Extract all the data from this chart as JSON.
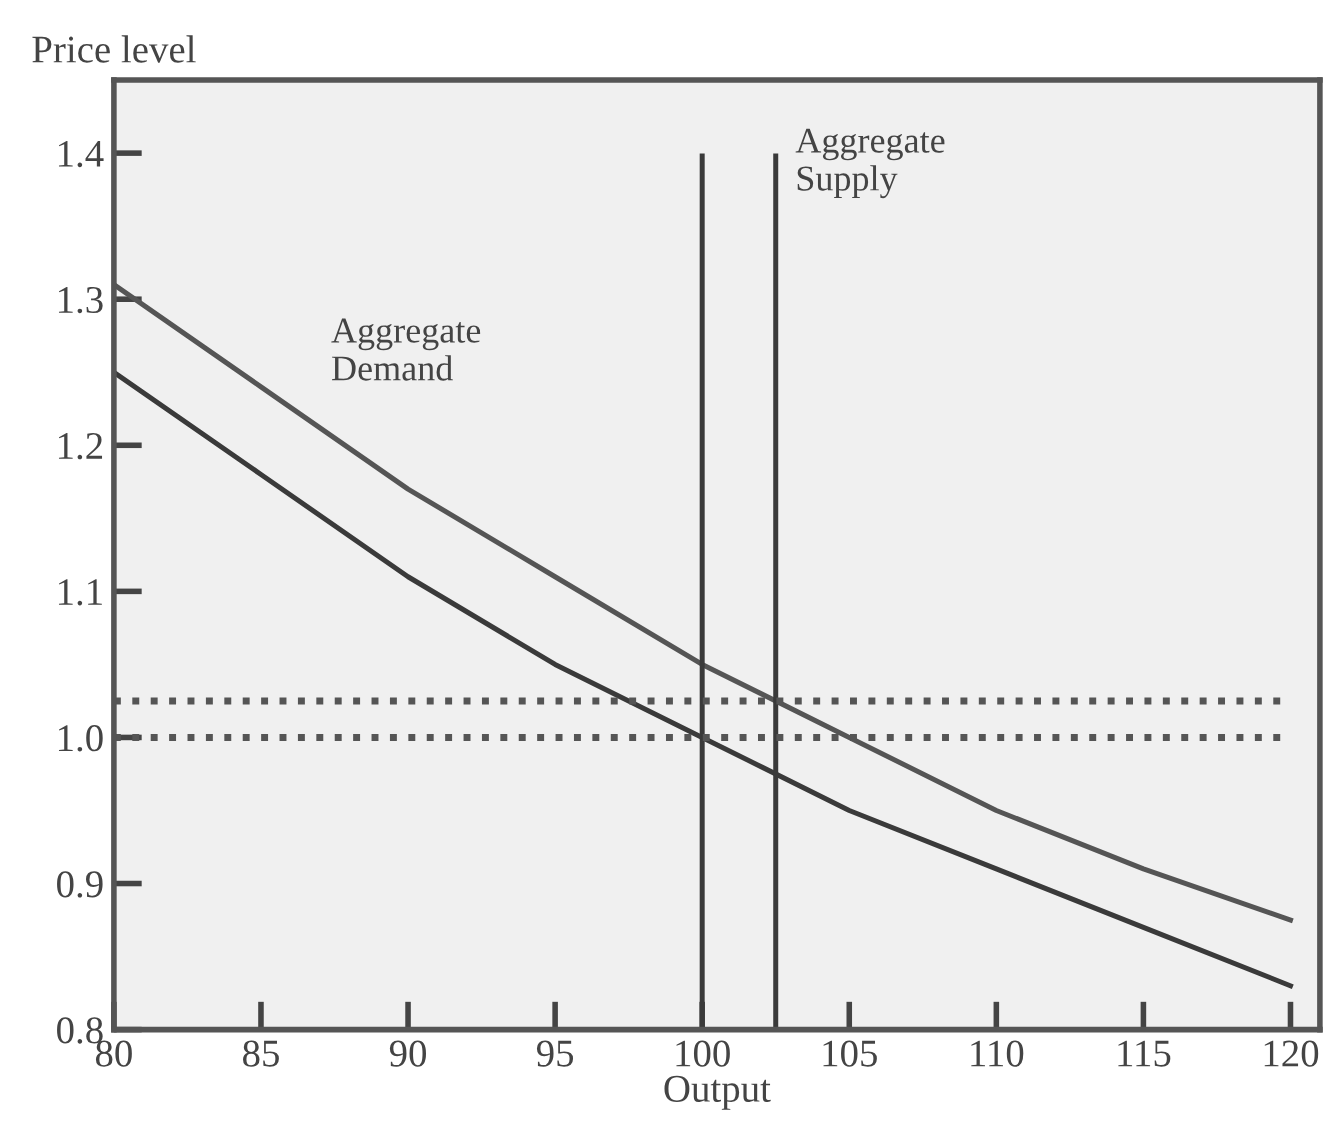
{
  "chart_data": {
    "type": "line",
    "xlabel": "Output",
    "ylabel": "Price level",
    "xlim": [
      80,
      121
    ],
    "ylim": [
      0.8,
      1.45
    ],
    "xticks": [
      80,
      85,
      90,
      95,
      100,
      105,
      110,
      115,
      120
    ],
    "yticks": [
      0.8,
      0.9,
      {
        "value": 1,
        "label": "1.0"
      },
      1.1,
      1.2,
      1.3,
      1.4
    ],
    "grid": false,
    "legend": false,
    "marker": "none",
    "line_style": "solid",
    "x": [
      80,
      85,
      90,
      95,
      100,
      105,
      110,
      115,
      120
    ],
    "series": [
      {
        "color": "#3a3a3a",
        "values": [
          1.25,
          1.18,
          1.11,
          1.05,
          1.0,
          0.95,
          0.91,
          0.87,
          0.83
        ]
      },
      {
        "color": "#555555",
        "values": [
          1.31,
          1.24,
          1.17,
          1.11,
          1.05,
          1.0,
          0.95,
          0.91,
          0.875
        ]
      }
    ],
    "ref_lines": [
      {
        "axis": "x",
        "value": 100,
        "color": "#3a3a3a",
        "line_style": "solid"
      },
      {
        "axis": "x",
        "value": 102.5,
        "color": "#3a3a3a",
        "line_style": "solid"
      },
      {
        "axis": "y",
        "value": 1.0,
        "color": "#555555",
        "line_style": "dotted"
      },
      {
        "axis": "y",
        "value": 1.025,
        "color": "#555555",
        "line_style": "dotted"
      }
    ],
    "annotations": [
      "Aggregate\nDemand",
      "Aggregate\nSupply"
    ]
  }
}
